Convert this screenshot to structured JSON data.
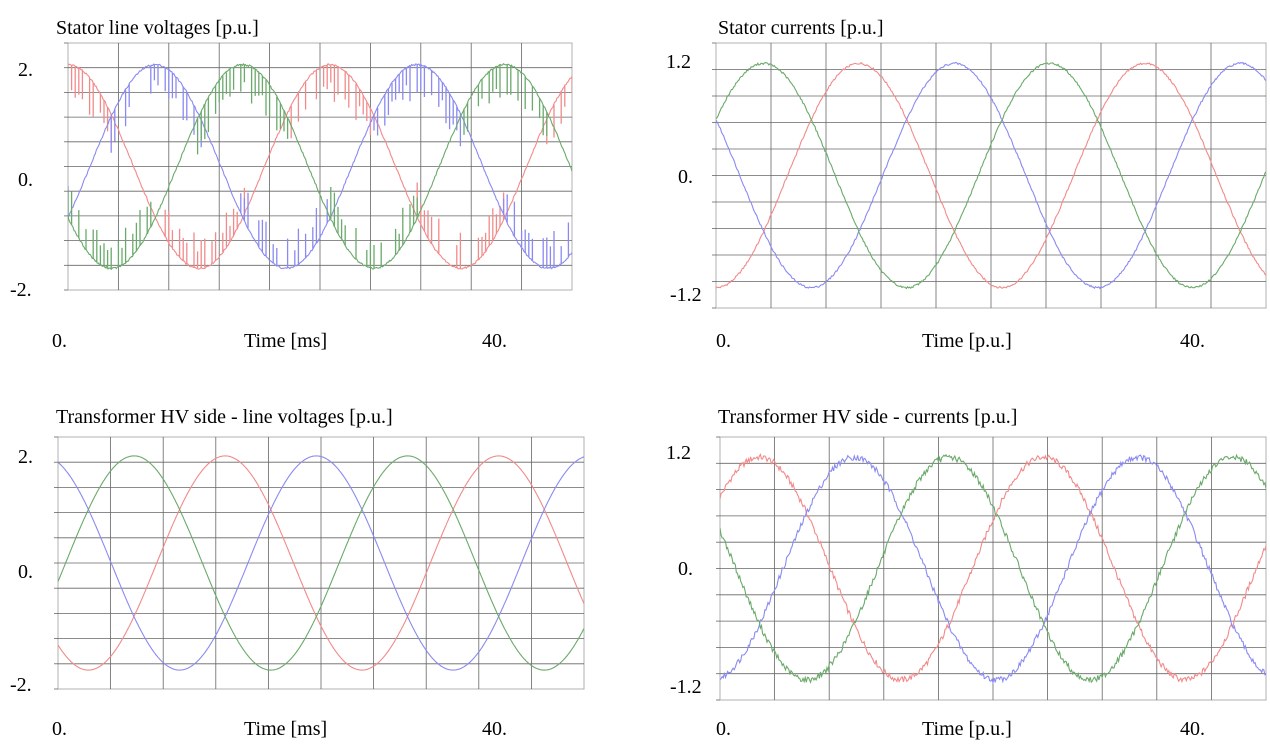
{
  "colors": {
    "phase_a": "#f28a8a",
    "phase_b": "#8a8af2",
    "phase_c": "#6aaa6a",
    "grid": "#666666",
    "frame": "#b0b0b0"
  },
  "chart_data": [
    {
      "type": "line",
      "title": "Stator line voltages [p.u.]",
      "xlabel": "Time [ms]",
      "x_tick_labels": [
        "0.",
        "40."
      ],
      "y_tick_labels": [
        "2.",
        "0.",
        "-2."
      ],
      "xlim": [
        0,
        50
      ],
      "ylim": [
        -2,
        2
      ],
      "grid": true,
      "waveform": {
        "amplitude": 1.65,
        "period_ms": 26,
        "ripple": "pwm-spikes"
      },
      "series": [
        {
          "phase_deg": 90,
          "color": "#f28a8a"
        },
        {
          "phase_deg": -30,
          "color": "#8a8af2"
        },
        {
          "phase_deg": 210,
          "color": "#6aaa6a"
        }
      ]
    },
    {
      "type": "line",
      "title": "Stator currents [p.u.]",
      "xlabel": "Time [p.u.]",
      "x_tick_labels": [
        "0.",
        "40."
      ],
      "y_tick_labels": [
        "1.2",
        "0.",
        "-1.2"
      ],
      "xlim": [
        0,
        50
      ],
      "ylim": [
        -1.3,
        1.3
      ],
      "grid": true,
      "waveform": {
        "amplitude": 1.1,
        "period_ms": 26,
        "ripple": "small"
      },
      "series": [
        {
          "phase_deg": -90,
          "color": "#f28a8a"
        },
        {
          "phase_deg": 150,
          "color": "#8a8af2"
        },
        {
          "phase_deg": 30,
          "color": "#6aaa6a"
        }
      ]
    },
    {
      "type": "line",
      "title": "Transformer HV side - line voltages [p.u.]",
      "xlabel": "Time [ms]",
      "x_tick_labels": [
        "0.",
        "40."
      ],
      "y_tick_labels": [
        "2.",
        "0.",
        "-2."
      ],
      "xlim": [
        0,
        50
      ],
      "ylim": [
        -2,
        2
      ],
      "grid": true,
      "waveform": {
        "amplitude": 1.7,
        "period_ms": 26,
        "ripple": "none"
      },
      "series": [
        {
          "phase_deg": -130,
          "color": "#f28a8a"
        },
        {
          "phase_deg": 110,
          "color": "#8a8af2"
        },
        {
          "phase_deg": -10,
          "color": "#6aaa6a"
        }
      ]
    },
    {
      "type": "line",
      "title": "Transformer HV side - currents [p.u.]",
      "xlabel": "Time [p.u.]",
      "x_tick_labels": [
        "0.",
        "40."
      ],
      "y_tick_labels": [
        "1.2",
        "0.",
        "-1.2"
      ],
      "xlim": [
        0,
        50
      ],
      "ylim": [
        -1.3,
        1.3
      ],
      "grid": true,
      "waveform": {
        "amplitude": 1.1,
        "period_ms": 26,
        "ripple": "noisy"
      },
      "series": [
        {
          "phase_deg": 40,
          "color": "#f28a8a"
        },
        {
          "phase_deg": -80,
          "color": "#8a8af2"
        },
        {
          "phase_deg": 160,
          "color": "#6aaa6a"
        }
      ]
    }
  ]
}
